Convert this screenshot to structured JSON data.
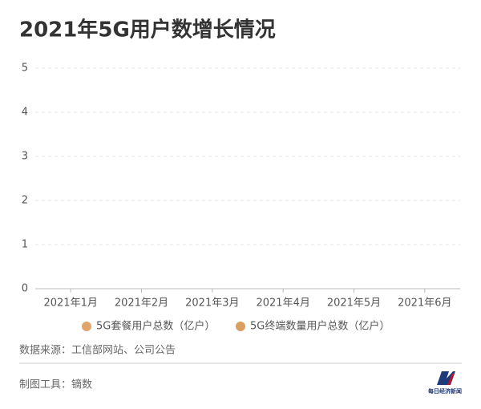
{
  "chart_data": {
    "type": "bar",
    "title": "2021年5G用户数增长情况",
    "categories": [
      "2021年1月",
      "2021年2月",
      "2021年3月",
      "2021年4月",
      "2021年5月",
      "2021年6月"
    ],
    "series": [
      {
        "name": "5G套餐用户总数（亿户）",
        "color": "#e0a46c",
        "values": [
          null,
          null,
          null,
          null,
          null,
          null
        ]
      },
      {
        "name": "5G终端数量用户总数（亿户）",
        "color": "#d99e62",
        "values": [
          null,
          null,
          null,
          null,
          null,
          null
        ]
      }
    ],
    "ylim": [
      0,
      5
    ],
    "yticks": [
      0,
      1,
      2,
      3,
      4,
      5
    ],
    "grid": true,
    "source": "数据来源：工信部网站、公司公告",
    "tool": "制图工具：镝数",
    "logo": "每日经济新闻"
  }
}
